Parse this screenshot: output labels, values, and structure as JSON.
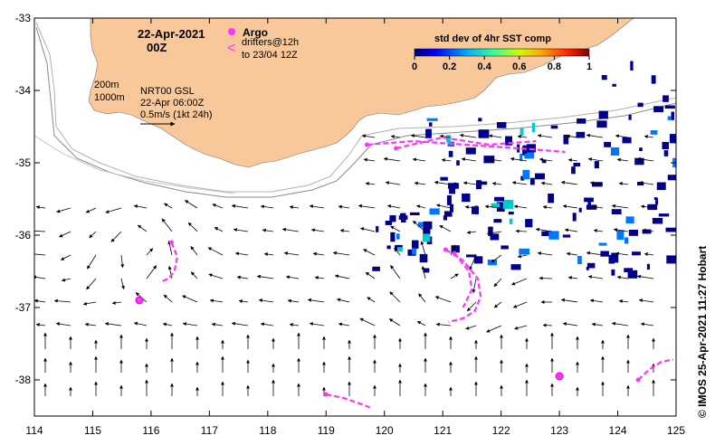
{
  "map": {
    "date_line1": "22-Apr-2021",
    "date_line2": "00Z",
    "argo_label": "Argo",
    "drifters_line1": "drifters@12h",
    "drifters_line2": "to 23/04 12Z",
    "contour_200": "200m",
    "contour_1000": "1000m",
    "altimetry_line1": "NRT00 GSL",
    "altimetry_line2": "22-Apr 06:00Z",
    "scale_label": "0.5m/s (1kt 24h)",
    "credit": "©  IMOS 25-Apr-2021 11:27 Hobart"
  },
  "colorbar": {
    "title": "std dev of 4hr SST comp",
    "ticks": [
      "0",
      "0.2",
      "0.4",
      "0.6",
      "0.8",
      "1"
    ],
    "tick_values": [
      0,
      0.2,
      0.4,
      0.6,
      0.8,
      1
    ]
  },
  "axes": {
    "x_ticks": [
      "114",
      "115",
      "116",
      "117",
      "118",
      "119",
      "120",
      "121",
      "122",
      "123",
      "124",
      "125"
    ],
    "x_values": [
      114,
      115,
      116,
      117,
      118,
      119,
      120,
      121,
      122,
      123,
      124,
      125
    ],
    "y_ticks": [
      "-33",
      "-34",
      "-35",
      "-36",
      "-37",
      "-38"
    ],
    "y_values": [
      -33,
      -34,
      -35,
      -36,
      -37,
      -38
    ],
    "xlim": [
      114,
      125
    ],
    "ylim": [
      -38.5,
      -33
    ]
  },
  "colors": {
    "land": "#f9c89a",
    "drifter": "#ff33ff",
    "sst_patch": "#00008b",
    "contour": "#a0a0a0"
  },
  "argo_floats": [
    {
      "lon": 115.8,
      "lat": -36.9
    },
    {
      "lon": 123.0,
      "lat": -37.95
    }
  ],
  "drifter_tracks": [
    [
      [
        116.35,
        -36.1
      ],
      [
        116.45,
        -36.3
      ],
      [
        116.4,
        -36.5
      ],
      [
        116.3,
        -36.6
      ],
      [
        116.15,
        -36.65
      ]
    ],
    [
      [
        121.05,
        -36.2
      ],
      [
        121.35,
        -36.35
      ],
      [
        121.6,
        -36.6
      ],
      [
        121.65,
        -36.85
      ],
      [
        121.55,
        -37.05
      ],
      [
        121.35,
        -37.15
      ],
      [
        121.1,
        -37.2
      ]
    ],
    [
      [
        121.2,
        -36.25
      ],
      [
        121.45,
        -36.5
      ],
      [
        121.5,
        -36.75
      ],
      [
        121.35,
        -37.0
      ]
    ],
    [
      [
        119.0,
        -38.2
      ],
      [
        119.3,
        -38.25
      ],
      [
        119.55,
        -38.32
      ],
      [
        119.75,
        -38.38
      ]
    ],
    [
      [
        124.35,
        -38.0
      ],
      [
        124.55,
        -37.85
      ],
      [
        124.75,
        -37.75
      ],
      [
        124.95,
        -37.72
      ]
    ],
    [
      [
        119.7,
        -34.75
      ],
      [
        120.5,
        -34.7
      ],
      [
        121.4,
        -34.75
      ],
      [
        122.3,
        -34.8
      ],
      [
        123.1,
        -34.85
      ]
    ],
    [
      [
        120.2,
        -34.8
      ],
      [
        121.0,
        -34.65
      ],
      [
        121.8,
        -34.75
      ],
      [
        122.6,
        -34.7
      ]
    ]
  ]
}
